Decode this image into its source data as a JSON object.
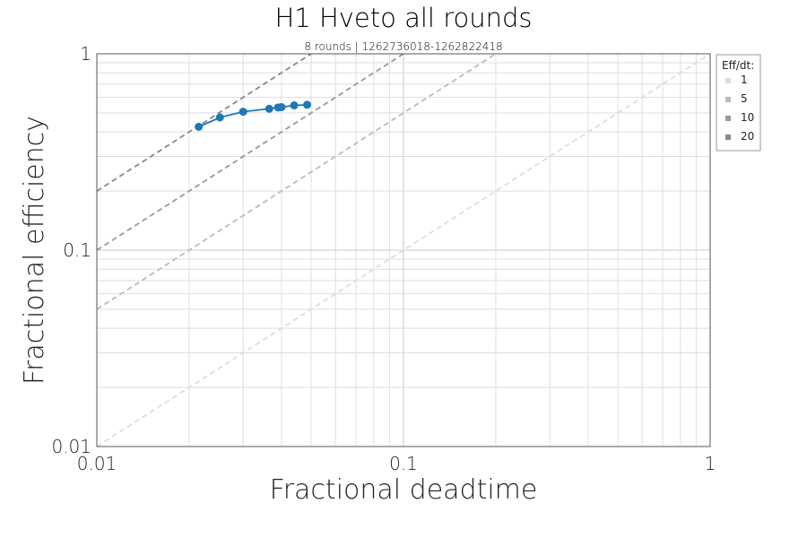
{
  "chart_data": {
    "type": "line",
    "title": "H1 Hveto all rounds",
    "subtitle": "8 rounds | 1262736018-1262822418",
    "xlabel": "Fractional deadtime",
    "ylabel": "Fractional efficiency",
    "xscale": "log",
    "yscale": "log",
    "xlim": [
      0.01,
      1
    ],
    "ylim": [
      0.01,
      1
    ],
    "x_tick_labels": [
      "0.01",
      "0.1",
      "1"
    ],
    "y_tick_labels": [
      "0.01",
      "0.1",
      "1"
    ],
    "grid": true,
    "series": [
      {
        "color": "#1f77b4",
        "x": [
          0.0215,
          0.0252,
          0.03,
          0.0365,
          0.039,
          0.04,
          0.044,
          0.0485
        ],
        "y": [
          0.425,
          0.474,
          0.507,
          0.525,
          0.533,
          0.535,
          0.546,
          0.55
        ]
      }
    ],
    "reference_lines": [
      {
        "ratio": 1,
        "color": "#dddddd"
      },
      {
        "ratio": 5,
        "color": "#bbbbbb"
      },
      {
        "ratio": 10,
        "color": "#999999"
      },
      {
        "ratio": 20,
        "color": "#888888"
      }
    ],
    "legend": {
      "title": "Eff/dt:",
      "placement": "outside-top-right",
      "entries": [
        "1",
        "5",
        "10",
        "20"
      ]
    }
  }
}
